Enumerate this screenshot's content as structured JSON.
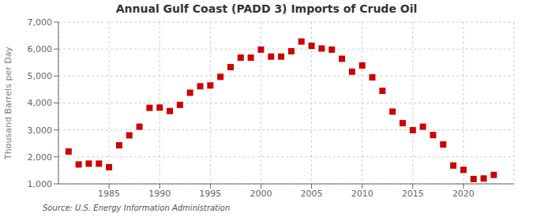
{
  "chart_data": {
    "type": "scatter",
    "title": "Annual Gulf Coast (PADD 3) Imports of Crude Oil",
    "ylabel": "Thousand Barrels per Day",
    "annotations": [
      "Source: U.S. Energy Information Administration"
    ],
    "x": [
      1981,
      1982,
      1983,
      1984,
      1985,
      1986,
      1987,
      1988,
      1989,
      1990,
      1991,
      1992,
      1993,
      1994,
      1995,
      1996,
      1997,
      1998,
      1999,
      2000,
      2001,
      2002,
      2003,
      2004,
      2005,
      2006,
      2007,
      2008,
      2009,
      2010,
      2011,
      2012,
      2013,
      2014,
      2015,
      2016,
      2017,
      2018,
      2019,
      2020,
      2021,
      2022,
      2023
    ],
    "values": [
      2200,
      1720,
      1750,
      1750,
      1620,
      2430,
      2800,
      3120,
      3820,
      3830,
      3700,
      3930,
      4380,
      4620,
      4650,
      4970,
      5330,
      5680,
      5680,
      5980,
      5720,
      5720,
      5920,
      6280,
      6120,
      6020,
      5980,
      5640,
      5160,
      5390,
      4950,
      4450,
      3680,
      3250,
      2990,
      3120,
      2810,
      2460,
      1680,
      1520,
      1180,
      1200,
      1330
    ],
    "color": "#cc0000",
    "marker": "square",
    "xlim": [
      1980,
      2025
    ],
    "xticks": [
      1985,
      1990,
      1995,
      2000,
      2005,
      2010,
      2015,
      2020
    ],
    "ylim": [
      1000,
      7000
    ],
    "yticks": [
      {
        "value": 1000,
        "label": "1,000"
      },
      {
        "value": 2000,
        "label": "2,000"
      },
      {
        "value": 3000,
        "label": "3,000"
      },
      {
        "value": 4000,
        "label": "4,000"
      },
      {
        "value": 5000,
        "label": "5,000"
      },
      {
        "value": 6000,
        "label": "6,000"
      },
      {
        "value": 7000,
        "label": "7,000"
      }
    ],
    "grid": true
  }
}
